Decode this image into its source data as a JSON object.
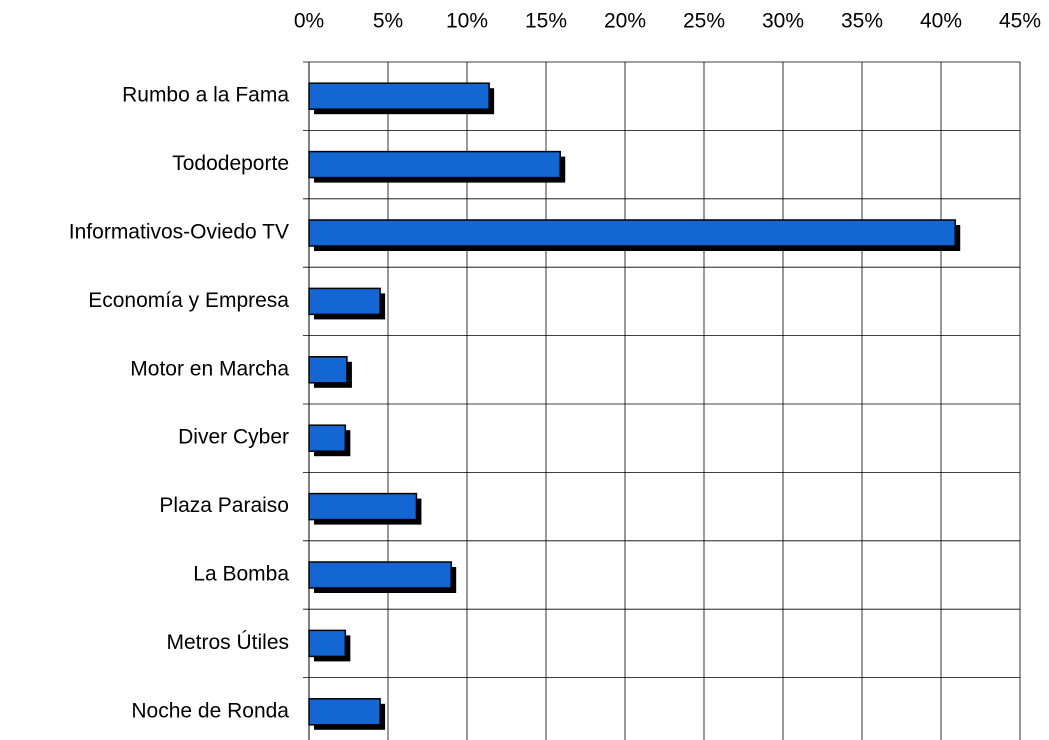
{
  "chart_data": {
    "type": "bar",
    "orientation": "horizontal",
    "categories": [
      "Rumbo a la Fama",
      "Tododeporte",
      "Informativos-Oviedo TV",
      "Economía y Empresa",
      "Motor en Marcha",
      "Diver Cyber",
      "Plaza Paraiso",
      "La Bomba",
      "Metros Útiles",
      "Noche de Ronda"
    ],
    "values": [
      11.4,
      15.9,
      40.9,
      4.5,
      2.4,
      2.3,
      6.8,
      9.0,
      2.3,
      4.5
    ],
    "color": "#1467d2",
    "xlim": [
      0,
      45
    ],
    "xticks": [
      {
        "value": 0,
        "label": "0%"
      },
      {
        "value": 5,
        "label": "5%"
      },
      {
        "value": 10,
        "label": "10%"
      },
      {
        "value": 15,
        "label": "15%"
      },
      {
        "value": 20,
        "label": "20%"
      },
      {
        "value": 25,
        "label": "25%"
      },
      {
        "value": 30,
        "label": "30%"
      },
      {
        "value": 35,
        "label": "35%"
      },
      {
        "value": 40,
        "label": "40%"
      },
      {
        "value": 45,
        "label": "45%"
      }
    ],
    "grid": true
  }
}
